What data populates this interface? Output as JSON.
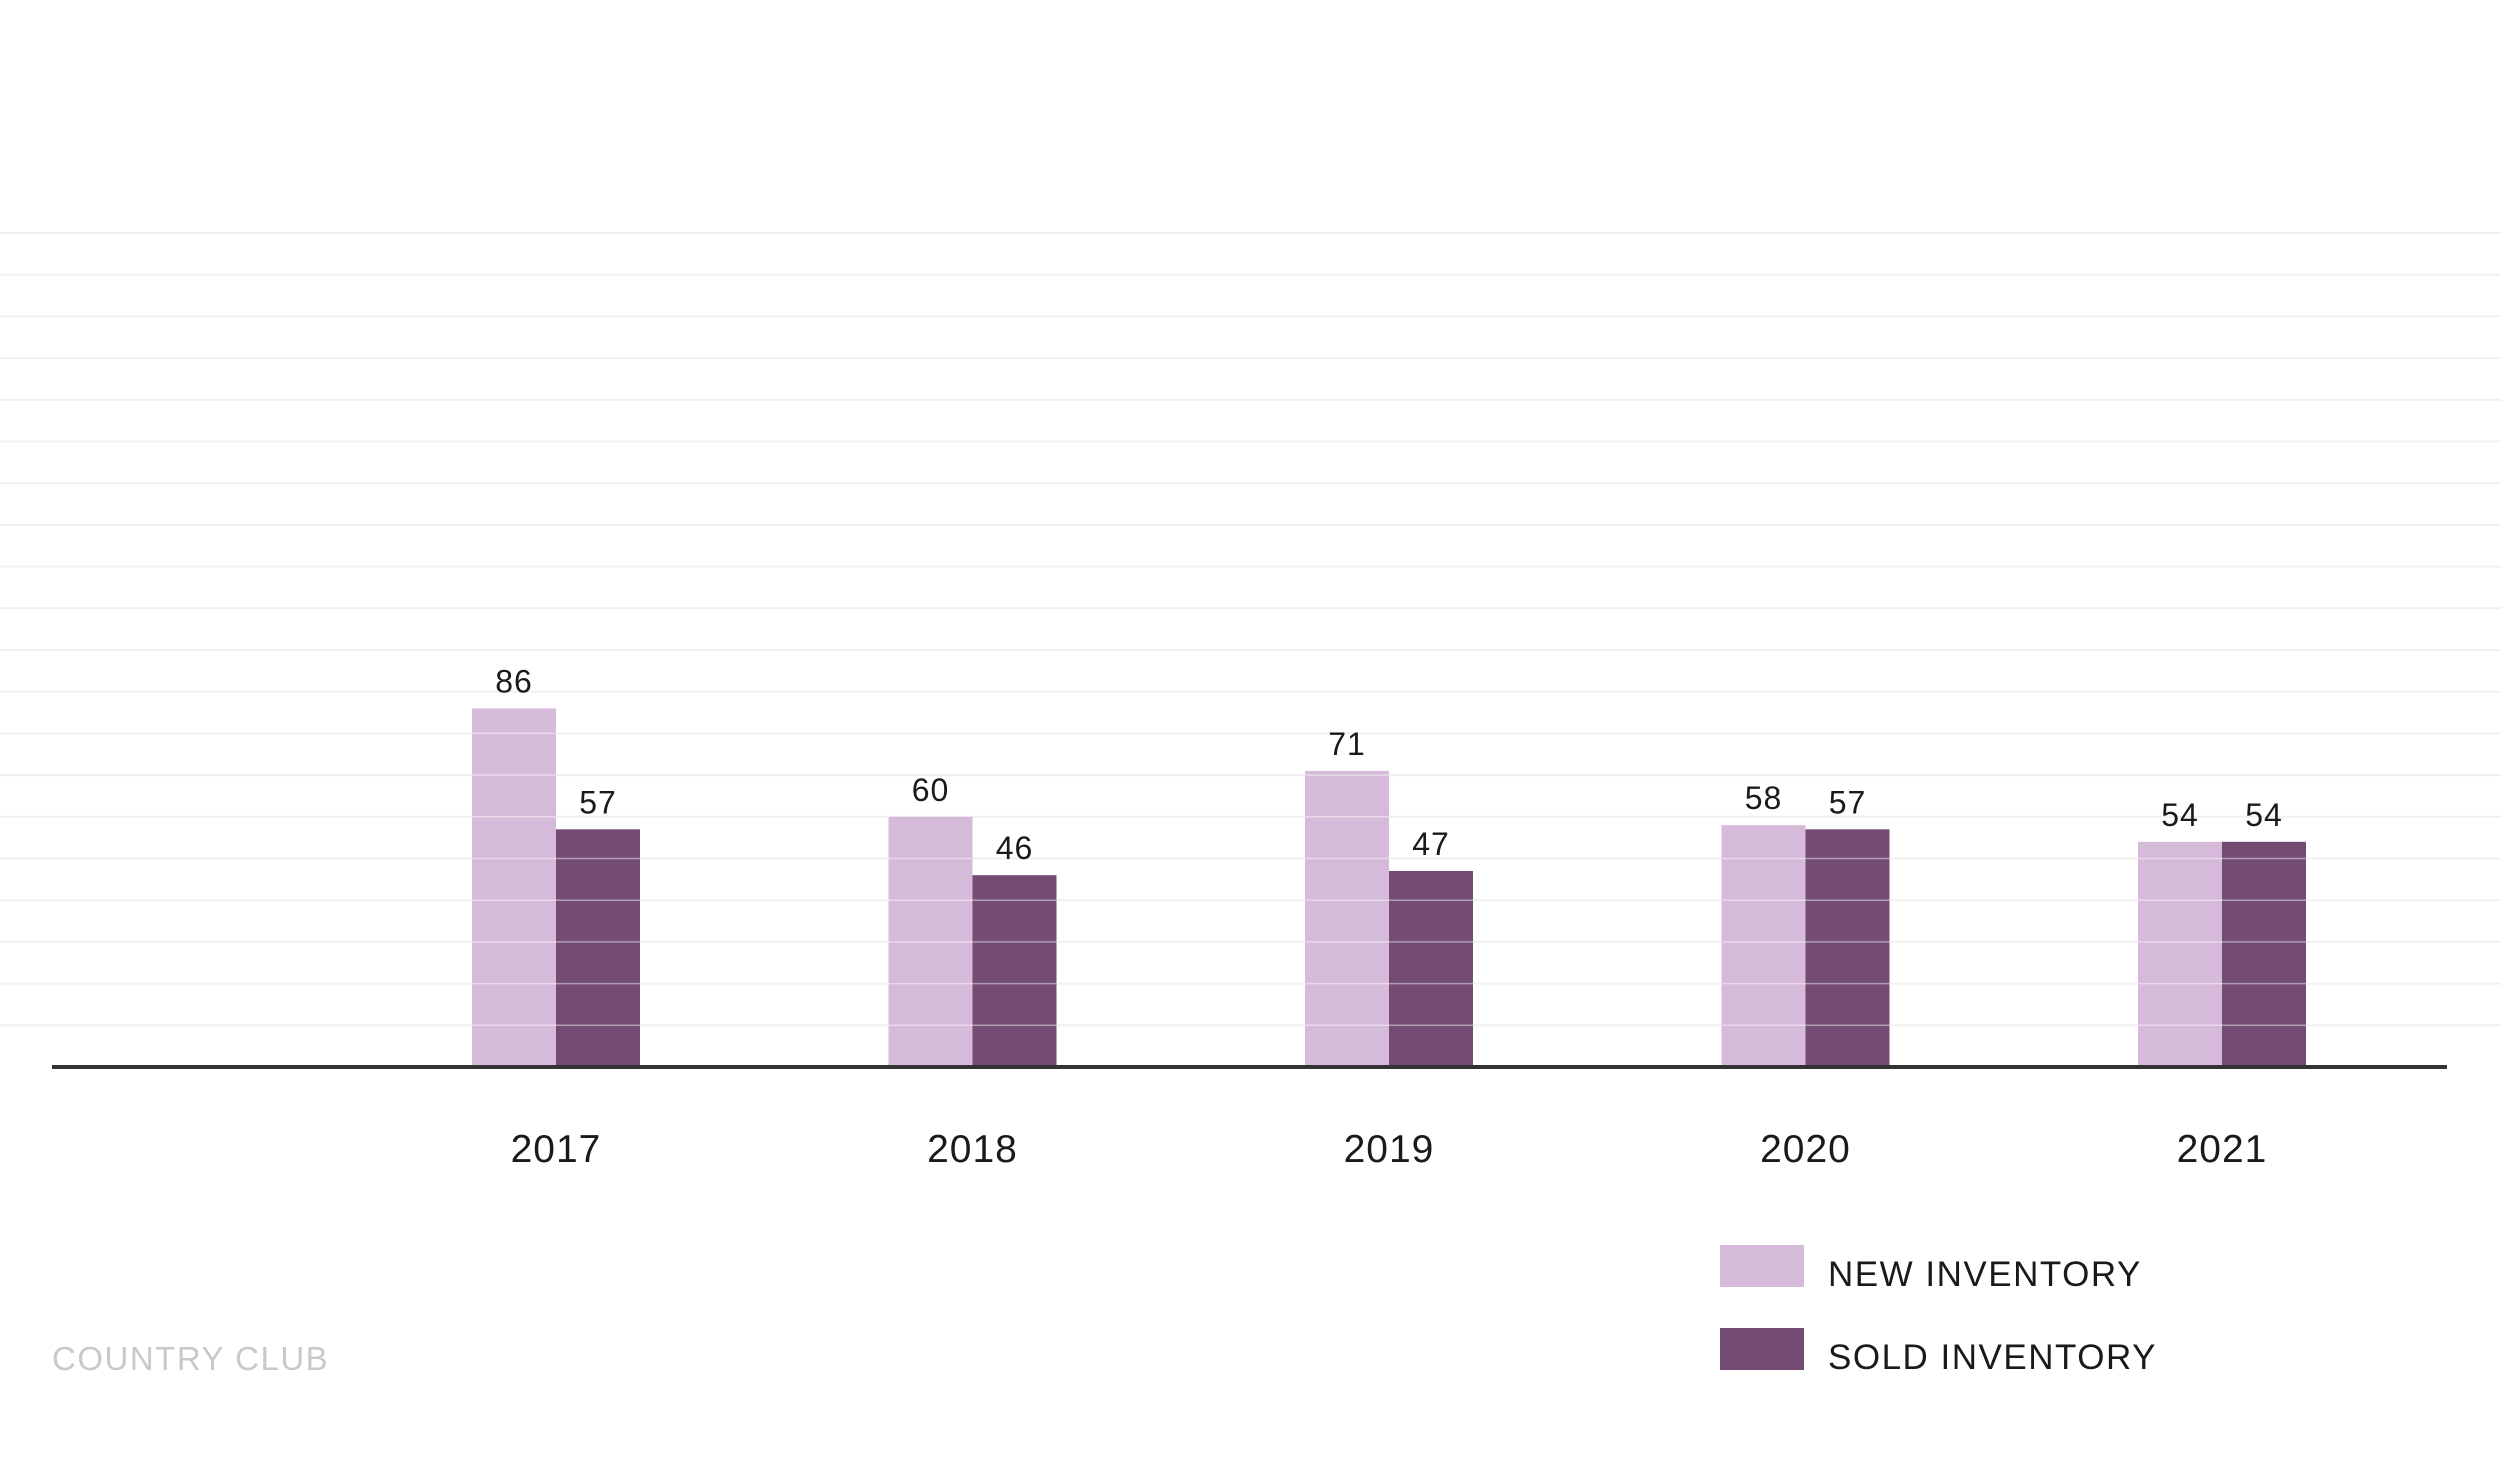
{
  "chart_data": {
    "type": "bar",
    "categories": [
      "2017",
      "2018",
      "2019",
      "2020",
      "2021"
    ],
    "series": [
      {
        "name": "NEW INVENTORY",
        "values": [
          86,
          60,
          71,
          58,
          54
        ],
        "color": "#d6bad9"
      },
      {
        "name": "SOLD INVENTORY",
        "values": [
          57,
          46,
          47,
          57,
          54
        ],
        "color": "#744b73"
      }
    ],
    "ylim": [
      0,
      200
    ],
    "grid": true,
    "legend_position": "bottom-right",
    "footer": "COUNTRY CLUB"
  }
}
